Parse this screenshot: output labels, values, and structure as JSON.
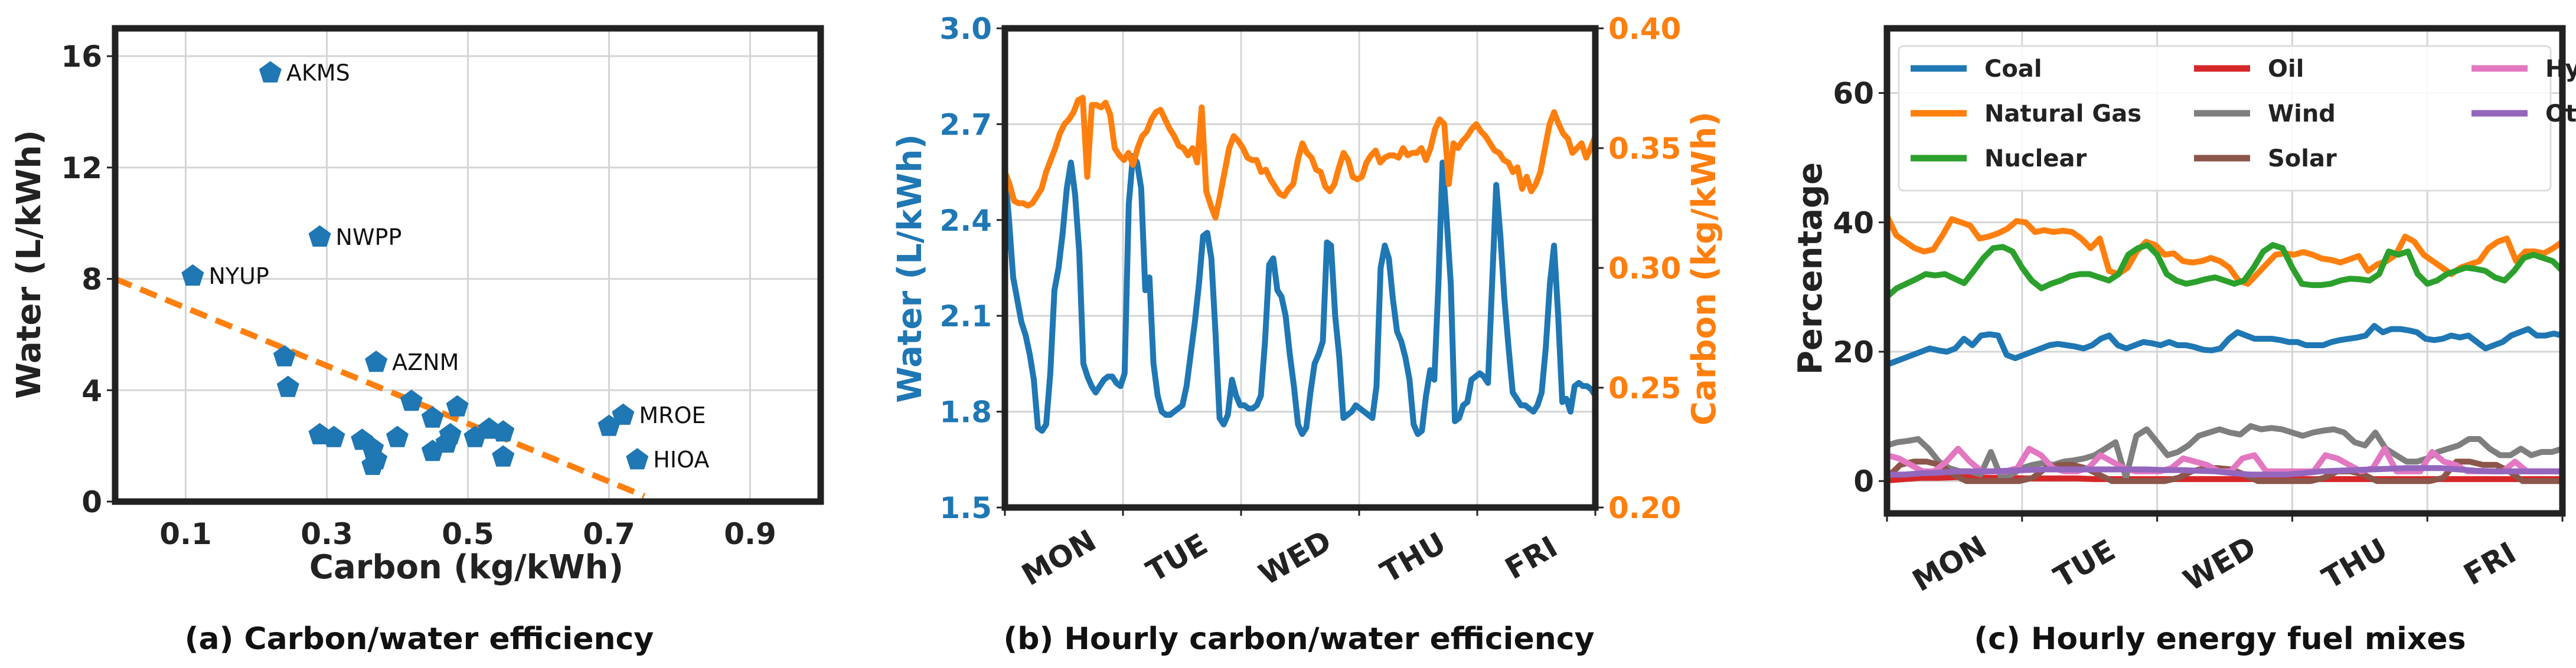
{
  "chart_data": [
    {
      "type": "scatter",
      "id": "a",
      "caption": "(a) Carbon/water efficiency",
      "xlabel": "Carbon (kg/kWh)",
      "ylabel": "Water (L/kWh)",
      "xlim": [
        0.0,
        1.0
      ],
      "ylim": [
        0,
        17
      ],
      "xticks": [
        0.1,
        0.3,
        0.5,
        0.7,
        0.9
      ],
      "xtick_labels": [
        "0.1",
        "0.3",
        "0.5",
        "0.7",
        "0.9"
      ],
      "yticks": [
        0,
        4,
        8,
        12,
        16
      ],
      "ytick_labels": [
        "0",
        "4",
        "8",
        "12",
        "16"
      ],
      "grid": true,
      "marker": "pentagon",
      "color": "#1f77b4",
      "points": [
        {
          "x": 0.22,
          "y": 15.4,
          "label": "AKMS"
        },
        {
          "x": 0.29,
          "y": 9.5,
          "label": "NWPP"
        },
        {
          "x": 0.11,
          "y": 8.1,
          "label": "NYUP"
        },
        {
          "x": 0.37,
          "y": 5.0,
          "label": "AZNM"
        },
        {
          "x": 0.72,
          "y": 3.1,
          "label": "MROE"
        },
        {
          "x": 0.74,
          "y": 1.5,
          "label": "HIOA"
        },
        {
          "x": 0.7,
          "y": 2.7,
          "label": ""
        },
        {
          "x": 0.24,
          "y": 5.2,
          "label": ""
        },
        {
          "x": 0.245,
          "y": 4.1,
          "label": ""
        },
        {
          "x": 0.42,
          "y": 3.6,
          "label": ""
        },
        {
          "x": 0.485,
          "y": 3.4,
          "label": ""
        },
        {
          "x": 0.45,
          "y": 3.0,
          "label": ""
        },
        {
          "x": 0.53,
          "y": 2.6,
          "label": ""
        },
        {
          "x": 0.55,
          "y": 2.5,
          "label": ""
        },
        {
          "x": 0.51,
          "y": 2.3,
          "label": ""
        },
        {
          "x": 0.29,
          "y": 2.4,
          "label": ""
        },
        {
          "x": 0.31,
          "y": 2.3,
          "label": ""
        },
        {
          "x": 0.35,
          "y": 2.2,
          "label": ""
        },
        {
          "x": 0.365,
          "y": 1.9,
          "label": ""
        },
        {
          "x": 0.37,
          "y": 1.5,
          "label": ""
        },
        {
          "x": 0.365,
          "y": 1.3,
          "label": ""
        },
        {
          "x": 0.4,
          "y": 2.3,
          "label": ""
        },
        {
          "x": 0.45,
          "y": 1.8,
          "label": ""
        },
        {
          "x": 0.47,
          "y": 2.1,
          "label": ""
        },
        {
          "x": 0.475,
          "y": 2.4,
          "label": ""
        },
        {
          "x": 0.55,
          "y": 1.6,
          "label": ""
        }
      ],
      "trendline": {
        "style": "dashed",
        "color": "#ff7f0e",
        "x": [
          0.0,
          0.75
        ],
        "y": [
          8.0,
          0.2
        ]
      }
    },
    {
      "type": "line",
      "id": "b",
      "caption": "(b) Hourly carbon/water efficiency",
      "ylabel_left": "Water (L/kWh)",
      "ylabel_right": "Carbon (kg/kWh)",
      "ylim_left": [
        1.5,
        3.0
      ],
      "ylim_right": [
        0.2,
        0.4
      ],
      "yticks_left": [
        "1.5",
        "1.8",
        "2.1",
        "2.4",
        "2.7",
        "3.0"
      ],
      "yticks_right": [
        "0.20",
        "0.25",
        "0.30",
        "0.35",
        "0.40"
      ],
      "xtick_labels": [
        "MON",
        "TUE",
        "WED",
        "THU",
        "FRI"
      ],
      "xlim_hours": [
        0,
        120
      ],
      "grid": true,
      "series": [
        {
          "name": "Water",
          "axis": "left",
          "color": "#1f77b4",
          "values": [
            2.55,
            2.4,
            2.22,
            2.15,
            2.08,
            2.04,
            1.98,
            1.9,
            1.75,
            1.74,
            1.76,
            1.92,
            2.18,
            2.25,
            2.36,
            2.5,
            2.58,
            2.48,
            2.3,
            1.95,
            1.91,
            1.88,
            1.86,
            1.88,
            1.9,
            1.91,
            1.91,
            1.89,
            1.88,
            1.92,
            2.45,
            2.6,
            2.58,
            2.5,
            2.18,
            2.22,
            1.95,
            1.85,
            1.8,
            1.79,
            1.79,
            1.8,
            1.81,
            1.82,
            1.88,
            1.98,
            2.08,
            2.2,
            2.35,
            2.36,
            2.28,
            2.05,
            1.78,
            1.76,
            1.79,
            1.9,
            1.85,
            1.82,
            1.82,
            1.81,
            1.81,
            1.82,
            1.85,
            2.02,
            2.26,
            2.28,
            2.18,
            2.16,
            2.1,
            1.98,
            1.88,
            1.76,
            1.73,
            1.75,
            1.86,
            1.95,
            1.98,
            2.02,
            2.33,
            2.32,
            2.1,
            1.97,
            1.78,
            1.79,
            1.8,
            1.82,
            1.81,
            1.8,
            1.79,
            1.78,
            1.88,
            2.25,
            2.32,
            2.28,
            2.15,
            2.05,
            2.02,
            1.97,
            1.9,
            1.76,
            1.73,
            1.74,
            1.85,
            1.93,
            1.9,
            2.2,
            2.58,
            2.4,
            2.2,
            1.77,
            1.78,
            1.82,
            1.83,
            1.9,
            1.91,
            1.92,
            1.91,
            1.89,
            2.2,
            2.51,
            2.35,
            2.15,
            2.0,
            1.86,
            1.84,
            1.82,
            1.82,
            1.81,
            1.8,
            1.82,
            1.86,
            2.0,
            2.2,
            2.32,
            2.1,
            1.83,
            1.84,
            1.8,
            1.88,
            1.89,
            1.88,
            1.88,
            1.87,
            1.85
          ]
        },
        {
          "name": "Carbon",
          "axis": "right",
          "color": "#ff7f0e",
          "values": [
            0.34,
            0.335,
            0.328,
            0.327,
            0.327,
            0.326,
            0.327,
            0.33,
            0.333,
            0.34,
            0.345,
            0.35,
            0.356,
            0.36,
            0.362,
            0.365,
            0.37,
            0.371,
            0.338,
            0.368,
            0.368,
            0.367,
            0.369,
            0.364,
            0.35,
            0.347,
            0.345,
            0.348,
            0.343,
            0.35,
            0.355,
            0.357,
            0.362,
            0.365,
            0.366,
            0.362,
            0.358,
            0.355,
            0.351,
            0.35,
            0.347,
            0.35,
            0.344,
            0.367,
            0.332,
            0.326,
            0.321,
            0.33,
            0.34,
            0.35,
            0.355,
            0.353,
            0.35,
            0.346,
            0.345,
            0.345,
            0.34,
            0.341,
            0.337,
            0.334,
            0.331,
            0.33,
            0.333,
            0.335,
            0.345,
            0.352,
            0.348,
            0.346,
            0.341,
            0.34,
            0.334,
            0.332,
            0.335,
            0.342,
            0.348,
            0.345,
            0.338,
            0.337,
            0.338,
            0.344,
            0.347,
            0.349,
            0.344,
            0.346,
            0.347,
            0.347,
            0.346,
            0.35,
            0.347,
            0.348,
            0.348,
            0.35,
            0.345,
            0.35,
            0.358,
            0.362,
            0.36,
            0.335,
            0.352,
            0.35,
            0.353,
            0.355,
            0.358,
            0.36,
            0.357,
            0.355,
            0.352,
            0.349,
            0.348,
            0.345,
            0.344,
            0.34,
            0.342,
            0.333,
            0.338,
            0.332,
            0.335,
            0.34,
            0.35,
            0.36,
            0.365,
            0.36,
            0.356,
            0.354,
            0.348,
            0.35,
            0.352,
            0.346,
            0.35,
            0.355
          ]
        }
      ]
    },
    {
      "type": "line",
      "id": "c",
      "caption": "(c) Hourly energy fuel mixes",
      "ylabel": "Percentage",
      "ylim": [
        -5,
        70
      ],
      "yticks": [
        "0",
        "20",
        "40",
        "60"
      ],
      "xtick_labels": [
        "MON",
        "TUE",
        "WED",
        "THU",
        "FRI"
      ],
      "grid": true,
      "legend": {
        "placement": "top",
        "columns": 3,
        "entries": [
          "Coal",
          "Natural Gas",
          "Nuclear",
          "Oil",
          "Wind",
          "Solar",
          "Hydro",
          "Other"
        ]
      },
      "series": [
        {
          "name": "Coal",
          "color": "#1f77b4",
          "values": [
            18,
            18.5,
            19,
            19.5,
            20,
            20.5,
            20.2,
            20,
            20.5,
            22,
            21,
            22.5,
            22.7,
            22.5,
            19.5,
            19,
            19.5,
            20,
            20.5,
            21,
            21.2,
            21,
            20.8,
            20.5,
            21,
            22,
            22.5,
            21,
            20.5,
            21,
            21.5,
            21.3,
            21,
            21.5,
            21,
            21,
            20.7,
            20.3,
            20.2,
            20.5,
            22,
            23,
            22.5,
            22,
            22,
            22,
            21.8,
            21.5,
            21.5,
            21,
            21,
            21,
            21.5,
            21.8,
            22,
            22.2,
            22.5,
            24,
            23,
            23.5,
            23.5,
            23.3,
            23,
            22,
            21.8,
            22,
            22.5,
            22.2,
            22.5,
            21.5,
            20.5,
            21,
            21.5,
            22.5,
            23,
            23.5,
            22.5,
            22.5,
            22.8,
            22.5
          ]
        },
        {
          "name": "Natural Gas",
          "color": "#ff7f0e",
          "values": [
            41,
            38,
            37,
            36,
            35.5,
            35.8,
            38,
            40.5,
            40,
            39.5,
            37.5,
            37.8,
            38.3,
            39,
            40.2,
            40,
            38.5,
            38.8,
            38.5,
            38.7,
            38.5,
            37.5,
            36,
            37.5,
            32.5,
            32,
            33,
            35.5,
            37,
            36.5,
            35,
            35.2,
            34,
            33.8,
            34,
            34.5,
            34,
            33,
            31,
            30.5,
            32,
            33.5,
            35,
            35.2,
            35,
            35.4,
            35,
            34.4,
            34.2,
            33.8,
            34.3,
            34.8,
            32.5,
            33.5,
            34,
            35,
            37.8,
            37,
            35,
            34,
            33,
            32,
            33,
            33.5,
            34,
            36,
            37,
            37.5,
            34,
            35.5,
            35.5,
            35.2,
            36,
            37
          ]
        },
        {
          "name": "Nuclear",
          "color": "#2ca02c",
          "values": [
            28.5,
            29.8,
            30.5,
            31.2,
            32,
            31.8,
            32,
            31.3,
            30.6,
            32.5,
            34.5,
            36,
            36.2,
            35.5,
            33,
            31,
            29.8,
            30.5,
            31,
            31.7,
            32,
            32,
            31.5,
            31,
            32,
            35,
            36,
            36.5,
            35,
            32,
            31,
            30.5,
            30.8,
            31.2,
            31.5,
            31,
            30.5,
            31,
            33,
            35.5,
            36.5,
            36,
            33,
            30.5,
            30.3,
            30.3,
            30.5,
            31,
            31.3,
            31.2,
            31,
            32,
            35.5,
            35,
            35.5,
            32,
            30.5,
            31,
            32,
            32.5,
            33,
            32.8,
            32.5,
            31.5,
            31,
            32.5,
            34.5,
            35,
            34.5,
            34,
            32.5
          ]
        },
        {
          "name": "Oil",
          "color": "#d62728",
          "values": [
            0.1,
            0.3,
            0.5,
            0.5,
            0.6,
            0.6,
            0.5,
            0.5,
            0.4,
            0.4,
            0.4,
            0.4,
            0.3,
            0.3,
            0.3,
            0.3,
            0.3,
            0.3,
            0.3,
            0.3,
            0.3,
            0.3,
            0.3,
            0.3,
            0.3,
            0.3,
            0.3,
            0.3,
            0.3,
            0.3,
            0.3,
            0.3,
            0.3,
            0.3,
            0.3,
            0.3,
            0.3,
            0.3,
            0.3,
            0.3
          ]
        },
        {
          "name": "Wind",
          "color": "#7f7f7f",
          "values": [
            5.5,
            6,
            6.2,
            6.5,
            5,
            3,
            2,
            1.5,
            1.5,
            1,
            4.5,
            0.5,
            1,
            2,
            2.5,
            2.8,
            2.5,
            3,
            3.2,
            3.5,
            4,
            5,
            6,
            0.5,
            7,
            8,
            6,
            4,
            4.5,
            5.5,
            7,
            7.5,
            8,
            7.5,
            7.2,
            8.5,
            8,
            8.2,
            8,
            7.5,
            7,
            7.5,
            7.8,
            8,
            7.5,
            6,
            5.5,
            7.5,
            5,
            4,
            3,
            3,
            3.5,
            4.5,
            5,
            5.5,
            6.5,
            6.5,
            5,
            4,
            4,
            5,
            4,
            4.5,
            4.5,
            5
          ]
        },
        {
          "name": "Solar",
          "color": "#8c564b",
          "values": [
            0.5,
            2.5,
            3,
            3,
            2.5,
            1,
            0,
            0,
            0,
            0,
            0,
            0.5,
            2,
            2.5,
            2.5,
            2,
            1,
            0,
            0,
            0,
            0,
            0,
            0.5,
            1.5,
            2,
            2,
            1.8,
            1,
            0,
            0,
            0,
            0,
            0,
            0.5,
            1.5,
            1.5,
            1,
            0,
            0,
            0,
            0,
            0,
            0.5,
            3,
            3,
            2.5,
            2.5,
            1.5,
            0,
            0,
            0,
            0
          ]
        },
        {
          "name": "Hydro",
          "color": "#e377c2",
          "values": [
            4,
            3.5,
            2.5,
            1.5,
            1.5,
            3,
            5,
            3,
            1.5,
            1.5,
            1.5,
            2,
            5,
            4,
            2,
            1.5,
            1.5,
            2,
            4,
            3,
            2,
            1.5,
            1.5,
            1.5,
            2,
            3.5,
            3,
            2.5,
            1.5,
            1.5,
            3.5,
            4,
            1.5,
            1.5,
            1.5,
            1.5,
            1.5,
            4,
            3.5,
            2.5,
            1.5,
            2,
            5,
            1.5,
            1.5,
            1.5,
            4.5,
            3,
            2.5,
            1.5,
            1.5,
            1.5,
            1.5,
            3,
            1.5,
            1.5,
            1.5,
            1.5
          ]
        },
        {
          "name": "Other",
          "color": "#9467bd",
          "values": [
            1,
            1,
            1.2,
            1.3,
            1.5,
            1.5,
            1.5,
            1.6,
            1.7,
            1.8,
            1.8,
            1.8,
            1.8,
            1.8,
            1.8,
            1.8,
            1.7,
            1.7,
            1.6,
            1.5,
            1.2,
            1,
            1,
            1,
            1.2,
            1.5,
            1.6,
            1.7,
            1.8,
            1.9,
            2,
            2,
            2,
            1.8,
            1.6,
            1.5,
            1.5,
            1.5,
            1.5,
            1.5
          ]
        }
      ]
    }
  ]
}
